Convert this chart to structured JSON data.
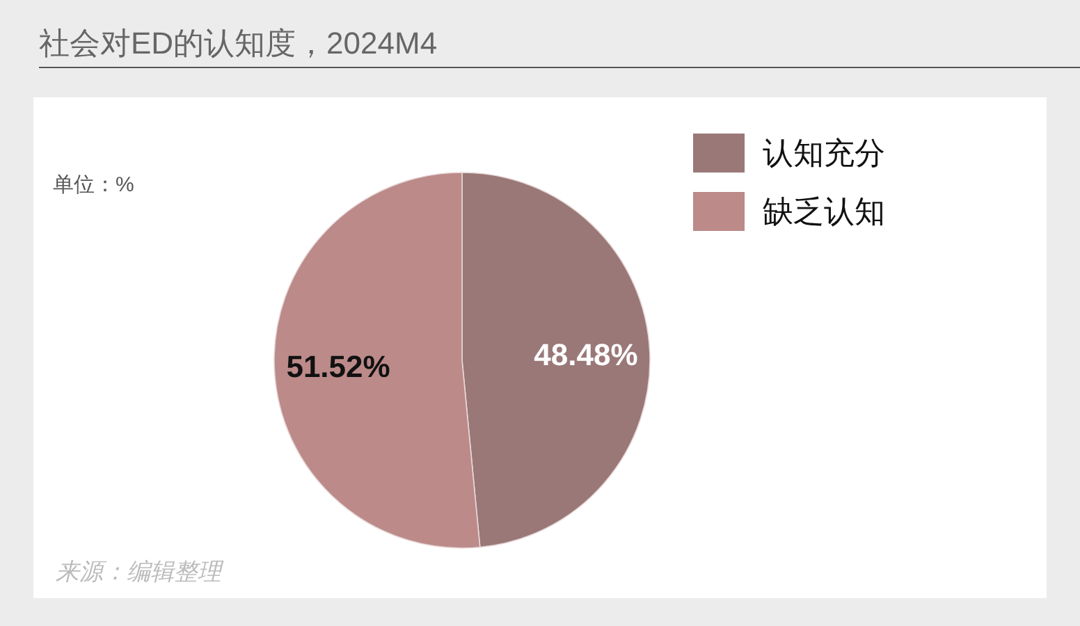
{
  "chart_data": {
    "type": "pie",
    "title": "社会对ED的认知度，2024M4",
    "categories": [
      "认知充分",
      "缺乏认知"
    ],
    "values": [
      48.48,
      51.52
    ],
    "colors": [
      "#9a7878",
      "#bb8a89"
    ],
    "value_labels": [
      "48.48%",
      "51.52%"
    ],
    "legend": "top right",
    "annotations": [
      "单位：%",
      "来源：编辑整理"
    ]
  }
}
